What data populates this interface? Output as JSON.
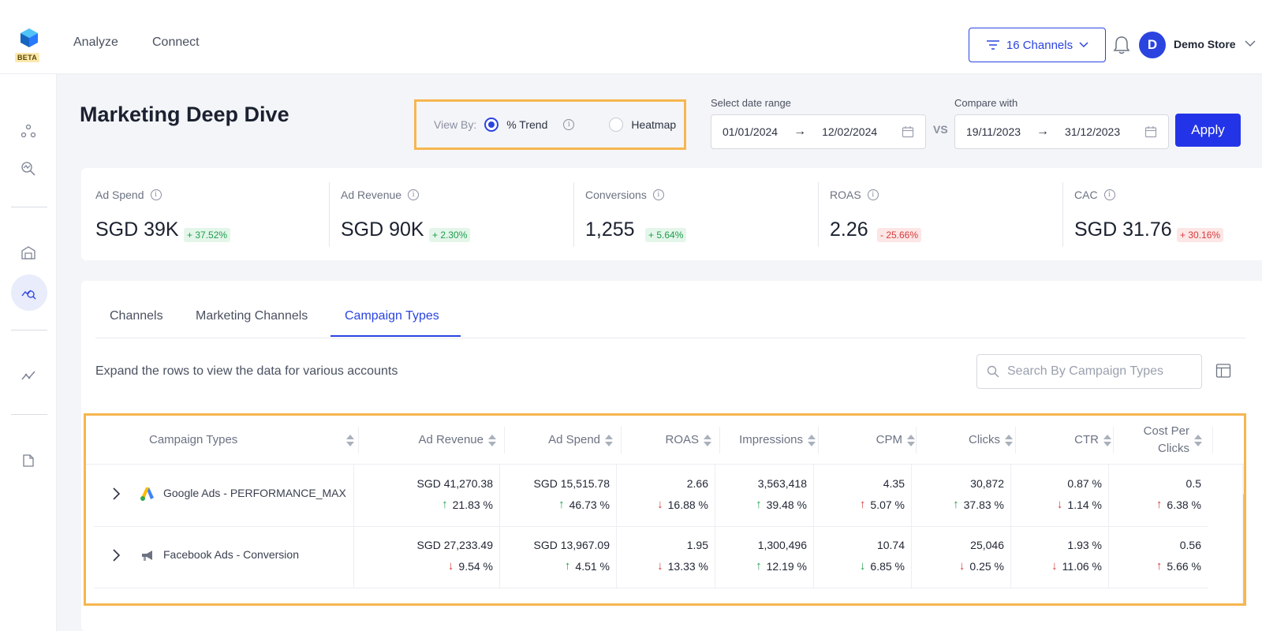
{
  "app": {
    "beta_label": "BETA"
  },
  "nav": {
    "items": [
      "Analyze",
      "Connect"
    ]
  },
  "header": {
    "channels_label": "16 Channels",
    "avatar_initial": "D",
    "store_name": "Demo Store"
  },
  "sidebar": {
    "icons": [
      "nodes-icon",
      "search-analysis-icon",
      "warehouse-icon",
      "deep-dive-icon",
      "trend-icon",
      "document-icon"
    ]
  },
  "page": {
    "title": "Marketing Deep Dive",
    "view_by": {
      "label": "View By:",
      "options": [
        "% Trend",
        "Heatmap"
      ],
      "selected": "% Trend"
    },
    "date_range": {
      "label": "Select date range",
      "start": "01/01/2024",
      "end": "12/02/2024"
    },
    "vs_label": "VS",
    "compare": {
      "label": "Compare with",
      "start": "19/11/2023",
      "end": "31/12/2023"
    },
    "apply_label": "Apply"
  },
  "kpis": [
    {
      "label": "Ad Spend",
      "value": "SGD 39K",
      "change": "+ 37.52%",
      "direction": "up"
    },
    {
      "label": "Ad Revenue",
      "value": "SGD 90K",
      "change": "+ 2.30%",
      "direction": "up"
    },
    {
      "label": "Conversions",
      "value": "1,255",
      "change": "+ 5.64%",
      "direction": "up"
    },
    {
      "label": "ROAS",
      "value": "2.26",
      "change": "- 25.66%",
      "direction": "down"
    },
    {
      "label": "CAC",
      "value": "SGD 31.76",
      "change": "+ 30.16%",
      "direction": "down"
    }
  ],
  "tabs": {
    "items": [
      "Channels",
      "Marketing Channels",
      "Campaign Types"
    ],
    "active": "Campaign Types"
  },
  "table_section": {
    "note": "Expand the rows to view the data for various accounts",
    "search_placeholder": "Search By Campaign Types"
  },
  "table": {
    "columns": [
      "Campaign Types",
      "Ad Revenue",
      "Ad Spend",
      "ROAS",
      "Impressions",
      "CPM",
      "Clicks",
      "CTR",
      "Cost Per Clicks"
    ],
    "rows": [
      {
        "name": "Google Ads - PERFORMANCE_MAX",
        "icon": "google-ads-icon",
        "cells": [
          {
            "value": "SGD 41,270.38",
            "change": "21.83 %",
            "dir": "up"
          },
          {
            "value": "SGD 15,515.78",
            "change": "46.73 %",
            "dir": "up"
          },
          {
            "value": "2.66",
            "change": "16.88 %",
            "dir": "down"
          },
          {
            "value": "3,563,418",
            "change": "39.48 %",
            "dir": "up"
          },
          {
            "value": "4.35",
            "change": "5.07 %",
            "dir": "up-red"
          },
          {
            "value": "30,872",
            "change": "37.83 %",
            "dir": "up"
          },
          {
            "value": "0.87 %",
            "change": "1.14 %",
            "dir": "down"
          },
          {
            "value": "0.5",
            "change": "6.38 %",
            "dir": "up-red"
          }
        ]
      },
      {
        "name": "Facebook Ads - Conversion",
        "icon": "megaphone-icon",
        "cells": [
          {
            "value": "SGD 27,233.49",
            "change": "9.54 %",
            "dir": "down"
          },
          {
            "value": "SGD 13,967.09",
            "change": "4.51 %",
            "dir": "up"
          },
          {
            "value": "1.95",
            "change": "13.33 %",
            "dir": "down"
          },
          {
            "value": "1,300,496",
            "change": "12.19 %",
            "dir": "up"
          },
          {
            "value": "10.74",
            "change": "6.85 %",
            "dir": "down-green"
          },
          {
            "value": "25,046",
            "change": "0.25 %",
            "dir": "down"
          },
          {
            "value": "1.93 %",
            "change": "11.06 %",
            "dir": "down"
          },
          {
            "value": "0.56",
            "change": "5.66 %",
            "dir": "up-red"
          }
        ]
      }
    ]
  }
}
